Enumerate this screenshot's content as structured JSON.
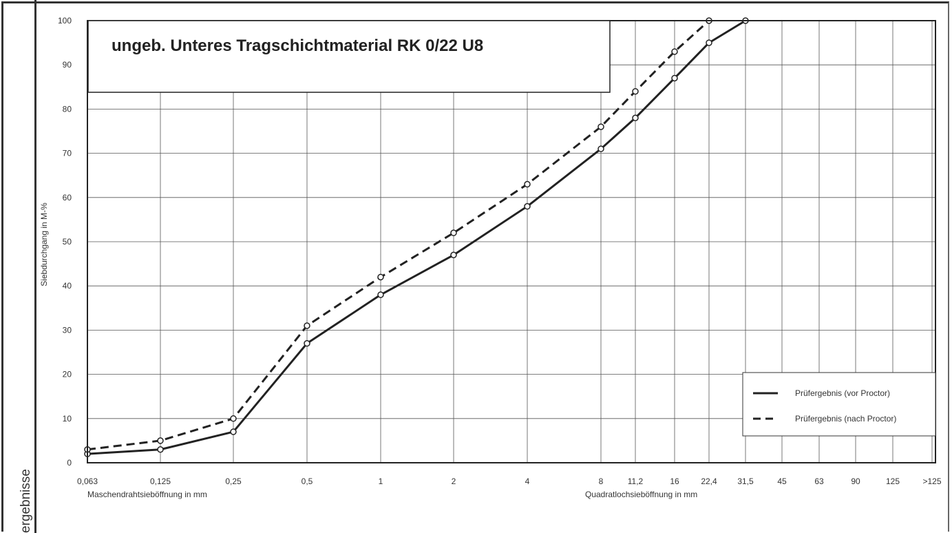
{
  "side_label": "ergebnisse",
  "chart_data": {
    "type": "line",
    "title": "ungeb. Unteres Tragschichtmaterial RK 0/22 U8",
    "ylabel": "Siebdurchgang in M-%",
    "xlabel_left": "Maschendrahtsieböffnung in mm",
    "xlabel_right": "Quadratlochsieböffnung in mm",
    "ylim": [
      0,
      100
    ],
    "yticks": [
      "0",
      "10",
      "20",
      "30",
      "40",
      "50",
      "60",
      "70",
      "80",
      "90",
      "100"
    ],
    "categories": [
      "0,063",
      "0,125",
      "0,25",
      "0,5",
      "1",
      "2",
      "4",
      "8",
      "11,2",
      "16",
      "22,4",
      "31,5",
      "45",
      "63",
      "90",
      "125",
      ">125"
    ],
    "category_x": [
      0.063,
      0.125,
      0.25,
      0.5,
      1,
      2,
      4,
      8,
      11.2,
      16,
      22.4,
      31.5,
      45,
      63,
      90,
      125,
      180
    ],
    "grid": true,
    "legend_position": "bottom-right",
    "series": [
      {
        "name": "Prüfergebnis (vor Proctor)",
        "style": "solid",
        "x": [
          0.063,
          0.125,
          0.25,
          0.5,
          1,
          2,
          4,
          8,
          11.2,
          16,
          22.4,
          31.5
        ],
        "values": [
          2,
          3,
          7,
          27,
          38,
          47,
          58,
          71,
          78,
          87,
          95,
          100
        ]
      },
      {
        "name": "Prüfergebnis (nach Proctor)",
        "style": "dashed",
        "x": [
          0.063,
          0.125,
          0.25,
          0.5,
          1,
          2,
          4,
          8,
          11.2,
          16,
          22.4
        ],
        "values": [
          3,
          5,
          10,
          31,
          42,
          52,
          63,
          76,
          84,
          93,
          100
        ]
      }
    ]
  }
}
